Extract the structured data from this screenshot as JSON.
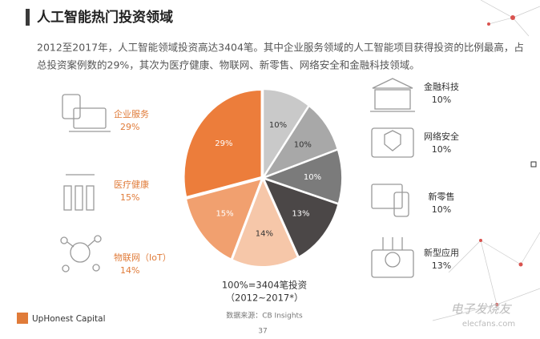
{
  "chart_data": {
    "type": "pie",
    "title": "人工智能热门投资领域",
    "subtitle": [
      "2012至2017年，人工智能领域投资高达3404笔。其中企业服务领域的人工智能项目获得投资的比例最高，占",
      "总投资案例数的29%，其次为医疗健康、物联网、新零售、网络安全和金融科技领域。"
    ],
    "categories": [
      "金融科技",
      "网络安全",
      "新零售",
      "新型应用",
      "物联网（IoT）",
      "医疗健康",
      "企业服务"
    ],
    "values": [
      10,
      10,
      10,
      13,
      14,
      15,
      29
    ],
    "value_labels": [
      "10%",
      "10%",
      "10%",
      "13%",
      "14%",
      "15%",
      "29%"
    ],
    "colors": [
      "#c9c9c9",
      "#a8a8a8",
      "#7b7b7b",
      "#4b4747",
      "#f6c7a9",
      "#f1a06f",
      "#ec7d3b"
    ],
    "center_note": [
      "100%=3404笔投资",
      "（2012~2017*）"
    ],
    "source": "数据来源：CB Insights",
    "page_number": "37",
    "logo": "UpHonest Capital",
    "watermark": [
      "电子发烧友",
      "elecfans.com"
    ]
  }
}
